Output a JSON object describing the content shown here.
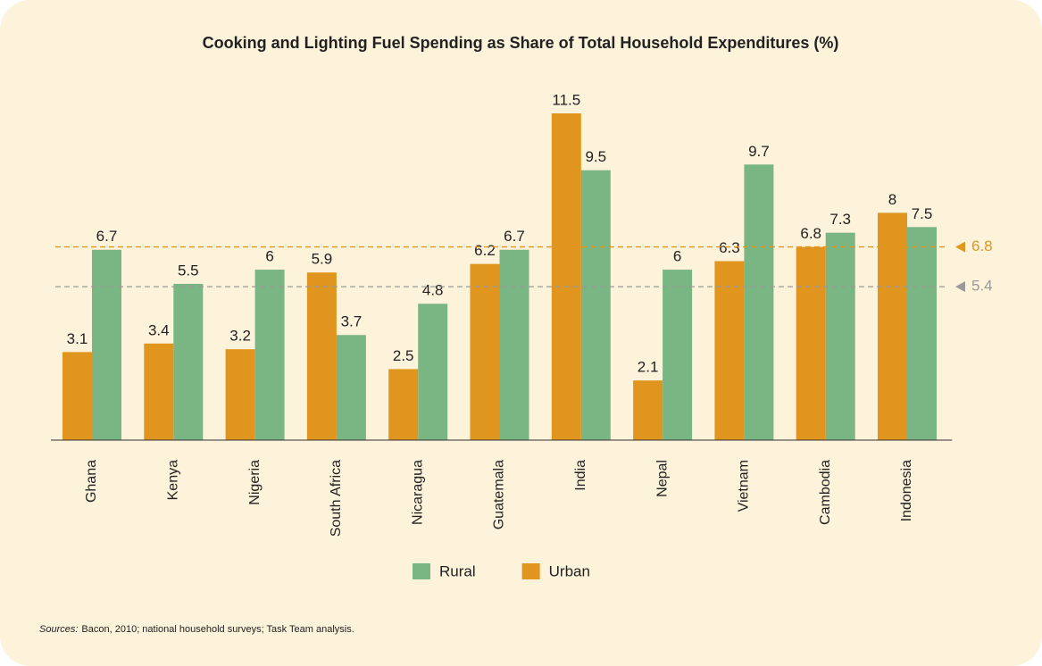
{
  "chart_data": {
    "type": "bar",
    "title": "Cooking and Lighting Fuel Spending as Share of Total Household Expenditures (%)",
    "categories": [
      "Ghana",
      "Kenya",
      "Nigeria",
      "South Africa",
      "Nicaragua",
      "Guatemala",
      "India",
      "Nepal",
      "Vietnam",
      "Cambodia",
      "Indonesia"
    ],
    "series": [
      {
        "name": "Rural",
        "color": "#7ab683",
        "values": [
          6.7,
          5.5,
          6.0,
          3.7,
          4.8,
          6.7,
          9.5,
          6.0,
          9.7,
          7.3,
          7.5
        ]
      },
      {
        "name": "Urban",
        "color": "#e0961e",
        "values": [
          3.1,
          3.4,
          3.2,
          5.9,
          2.5,
          6.2,
          11.5,
          2.1,
          6.3,
          6.8,
          8.0
        ]
      }
    ],
    "ylim": [
      0,
      11.5
    ],
    "reference_lines": [
      {
        "value": 6.8,
        "color": "#e0961e"
      },
      {
        "value": 5.4,
        "color": "#9a9a9a"
      }
    ],
    "source_label": "Sources:",
    "source_text": "Bacon, 2010; national household surveys; Task Team analysis."
  }
}
